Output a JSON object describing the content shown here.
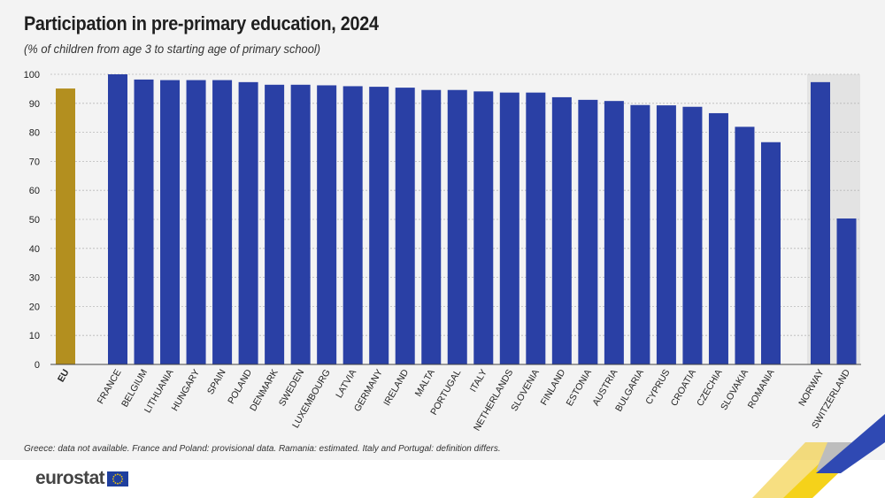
{
  "header": {
    "title": "Participation in pre-primary education, 2024",
    "subtitle": "(% of children from age 3 to starting age of primary school)"
  },
  "footnote": "Greece: data not available. France and Poland: provisional data. Ramania: estimated. Italy and Portugal: definition differs.",
  "brand": {
    "logo_text": "eurostat",
    "logo_icon": "eu-flag-icon"
  },
  "colors": {
    "eu_bar": "#b38f1f",
    "country_bar": "#2a40a5",
    "highlight_band": "#e3e3e3"
  },
  "chart_data": {
    "type": "bar",
    "title": "Participation in pre-primary education, 2024",
    "subtitle": "(% of children from age 3 to starting age of primary school)",
    "ylim": [
      0,
      100
    ],
    "yticks": [
      0,
      10,
      20,
      30,
      40,
      50,
      60,
      70,
      80,
      90,
      100
    ],
    "grid": true,
    "categories": [
      "EU",
      "FRANCE",
      "BELGIUM",
      "LITHUANIA",
      "HUNGARY",
      "SPAIN",
      "POLAND",
      "DENMARK",
      "SWEDEN",
      "LUXEMBOURG",
      "LATVIA",
      "GERMANY",
      "IRELAND",
      "MALTA",
      "PORTUGAL",
      "ITALY",
      "NETHERLANDS",
      "SLOVENIA",
      "FINLAND",
      "ESTONIA",
      "AUSTRIA",
      "BULGARIA",
      "CYPRUS",
      "CROATIA",
      "CZECHIA",
      "SLOVAKIA",
      "ROMANIA",
      "NORWAY",
      "SWITZERLAND"
    ],
    "values": [
      95.1,
      100,
      98.2,
      98.0,
      98.0,
      98.0,
      97.3,
      96.4,
      96.4,
      96.2,
      95.9,
      95.7,
      95.4,
      94.6,
      94.6,
      94.1,
      93.7,
      93.7,
      92.1,
      91.2,
      90.8,
      89.4,
      89.3,
      88.8,
      86.6,
      81.9,
      76.6,
      97.3,
      50.3
    ],
    "groups": {
      "EU": [
        "EU"
      ],
      "Member states": [
        "FRANCE",
        "BELGIUM",
        "LITHUANIA",
        "HUNGARY",
        "SPAIN",
        "POLAND",
        "DENMARK",
        "SWEDEN",
        "LUXEMBOURG",
        "LATVIA",
        "GERMANY",
        "IRELAND",
        "MALTA",
        "PORTUGAL",
        "ITALY",
        "NETHERLANDS",
        "SLOVENIA",
        "FINLAND",
        "ESTONIA",
        "AUSTRIA",
        "BULGARIA",
        "CYPRUS",
        "CROATIA",
        "CZECHIA",
        "SLOVAKIA",
        "ROMANIA"
      ],
      "Other": [
        "NORWAY",
        "SWITZERLAND"
      ]
    }
  }
}
